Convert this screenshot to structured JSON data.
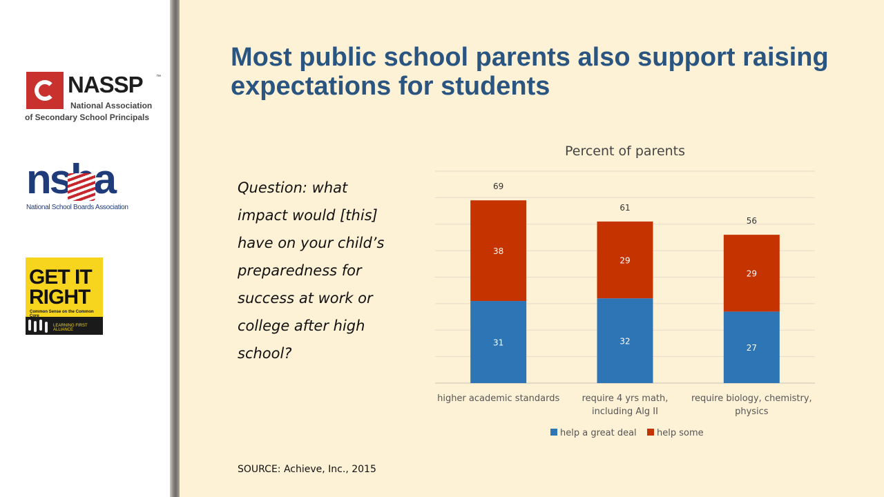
{
  "slide": {
    "title": "Most public school parents also support raising expectations for students",
    "question": "Question: what impact would [this] have on your child’s preparedness for success at work or college after high school?",
    "source": "SOURCE: Achieve, Inc., 2015"
  },
  "logos": {
    "nassp": {
      "name": "NASSP",
      "tm": "™",
      "line1": "National Association",
      "line2": "of Secondary School Principals"
    },
    "nsba": {
      "name": "nsba",
      "line1": "National School Boards Association"
    },
    "get_it_right": {
      "line1": "GET IT",
      "line2": "RIGHT",
      "tagline": "Common Sense on the Common Core",
      "footer": "LEARNING FIRST ALLIANCE"
    }
  },
  "colors": {
    "help_a_great_deal": "#2e75b6",
    "help_some": "#c53300",
    "title": "#2a5580",
    "background": "#fdf1d6"
  },
  "chart_data": {
    "type": "bar",
    "stacked": true,
    "title": "Percent of parents",
    "categories": [
      [
        "higher academic standards"
      ],
      [
        "require 4 yrs math,",
        "including Alg II"
      ],
      [
        "require biology, chemistry,",
        "physics"
      ]
    ],
    "series": [
      {
        "name": "help a great deal",
        "values": [
          31,
          32,
          27
        ]
      },
      {
        "name": "help some",
        "values": [
          38,
          29,
          29
        ]
      }
    ],
    "totals": [
      69,
      61,
      56
    ],
    "ylim": [
      0,
      80
    ],
    "grid": true,
    "legend": "bottom"
  }
}
